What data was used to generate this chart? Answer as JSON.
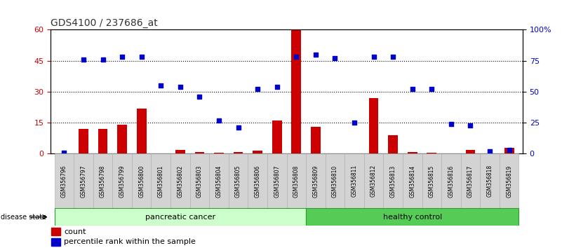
{
  "title": "GDS4100 / 237686_at",
  "samples": [
    "GSM356796",
    "GSM356797",
    "GSM356798",
    "GSM356799",
    "GSM356800",
    "GSM356801",
    "GSM356802",
    "GSM356803",
    "GSM356804",
    "GSM356805",
    "GSM356806",
    "GSM356807",
    "GSM356808",
    "GSM356809",
    "GSM356810",
    "GSM356811",
    "GSM356812",
    "GSM356813",
    "GSM356814",
    "GSM356815",
    "GSM356816",
    "GSM356817",
    "GSM356818",
    "GSM356819"
  ],
  "counts": [
    0.3,
    12,
    12,
    14,
    22,
    0.3,
    2,
    1,
    0.5,
    1,
    1.5,
    16,
    60,
    13,
    0.3,
    0.3,
    27,
    9,
    1,
    0.5,
    0.3,
    2,
    0.3,
    3
  ],
  "percentiles": [
    1,
    76,
    76,
    78,
    78,
    55,
    54,
    46,
    27,
    21,
    52,
    54,
    78,
    80,
    77,
    25,
    78,
    78,
    52,
    52,
    24,
    23,
    2,
    3
  ],
  "bar_color": "#cc0000",
  "scatter_color": "#0000cc",
  "cancer_count": 13,
  "pancreatic_label": "pancreatic cancer",
  "healthy_label": "healthy control",
  "disease_state_label": "disease state",
  "legend_count": "count",
  "legend_percentile": "percentile rank within the sample",
  "ylim_left": [
    0,
    60
  ],
  "ylim_right": [
    0,
    100
  ],
  "yticks_left": [
    0,
    15,
    30,
    45,
    60
  ],
  "yticks_right": [
    0,
    25,
    50,
    75,
    100
  ],
  "ytick_labels_right": [
    "0",
    "25",
    "50",
    "75",
    "100%"
  ],
  "background_color": "#ffffff",
  "cancer_bg": "#ccffcc",
  "healthy_bg": "#55cc55",
  "sample_box_bg": "#d3d3d3",
  "sample_box_edge": "#aaaaaa"
}
